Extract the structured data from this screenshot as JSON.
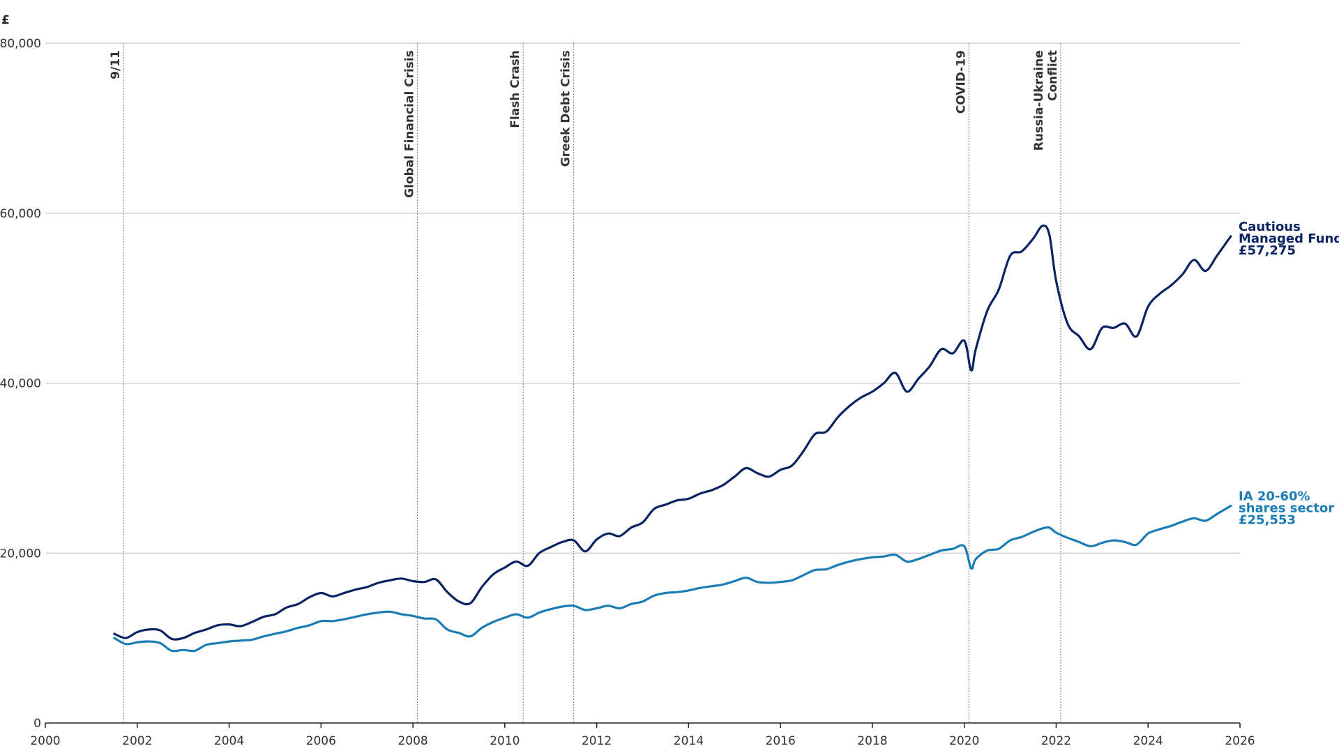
{
  "chart_data": {
    "type": "line",
    "title": "",
    "xlabel": "",
    "ylabel": "£",
    "xlim": [
      2000,
      2026
    ],
    "ylim": [
      0,
      80000
    ],
    "x_ticks": [
      "2000",
      "2002",
      "2004",
      "2006",
      "2008",
      "2010",
      "2012",
      "2014",
      "2016",
      "2018",
      "2020",
      "2022",
      "2024",
      "2026"
    ],
    "y_ticks": [
      "0",
      "20,000",
      "40,000",
      "60,000",
      "80,000"
    ],
    "grid": "horizontal",
    "events": [
      {
        "label": "9/11",
        "x": 2001.7
      },
      {
        "label": "Global Financial Crisis",
        "x": 2008.1
      },
      {
        "label": "Flash Crash",
        "x": 2010.4
      },
      {
        "label": "Greek Debt Crisis",
        "x": 2011.5
      },
      {
        "label": "COVID-19",
        "x": 2020.1
      },
      {
        "label": "Russia-Ukraine Conflict",
        "x": 2022.1,
        "lines": [
          "Russia-Ukraine",
          "Conflict"
        ]
      }
    ],
    "series": [
      {
        "name": "Cautious Managed Fund",
        "end_label": [
          "Cautious",
          "Managed Fund",
          "£57,275"
        ],
        "color": "#0a2463",
        "x": [
          2001.5,
          2001.75,
          2002.0,
          2002.25,
          2002.5,
          2002.75,
          2003.0,
          2003.25,
          2003.5,
          2003.75,
          2004.0,
          2004.25,
          2004.5,
          2004.75,
          2005.0,
          2005.25,
          2005.5,
          2005.75,
          2006.0,
          2006.25,
          2006.5,
          2006.75,
          2007.0,
          2007.25,
          2007.5,
          2007.75,
          2008.0,
          2008.25,
          2008.5,
          2008.75,
          2009.0,
          2009.25,
          2009.5,
          2009.75,
          2010.0,
          2010.25,
          2010.5,
          2010.75,
          2011.0,
          2011.25,
          2011.5,
          2011.75,
          2012.0,
          2012.25,
          2012.5,
          2012.75,
          2013.0,
          2013.25,
          2013.5,
          2013.75,
          2014.0,
          2014.25,
          2014.5,
          2014.75,
          2015.0,
          2015.25,
          2015.5,
          2015.75,
          2016.0,
          2016.25,
          2016.5,
          2016.75,
          2017.0,
          2017.25,
          2017.5,
          2017.75,
          2018.0,
          2018.25,
          2018.5,
          2018.75,
          2019.0,
          2019.25,
          2019.5,
          2019.75,
          2020.0,
          2020.15,
          2020.25,
          2020.5,
          2020.75,
          2021.0,
          2021.25,
          2021.5,
          2021.7,
          2021.85,
          2022.0,
          2022.25,
          2022.5,
          2022.75,
          2023.0,
          2023.25,
          2023.5,
          2023.75,
          2024.0,
          2024.25,
          2024.5,
          2024.75,
          2025.0,
          2025.25,
          2025.5,
          2025.8
        ],
        "values": [
          10500,
          10000,
          10700,
          11000,
          10900,
          9900,
          10000,
          10600,
          11000,
          11500,
          11600,
          11400,
          11900,
          12500,
          12800,
          13600,
          14000,
          14800,
          15300,
          14900,
          15300,
          15700,
          16000,
          16500,
          16800,
          17000,
          16700,
          16600,
          16900,
          15400,
          14300,
          14100,
          16000,
          17500,
          18300,
          19000,
          18500,
          20000,
          20700,
          21300,
          21500,
          20200,
          21600,
          22300,
          22000,
          23000,
          23600,
          25200,
          25700,
          26200,
          26400,
          27000,
          27400,
          28000,
          29000,
          30000,
          29400,
          29000,
          29800,
          30300,
          32000,
          34000,
          34300,
          36000,
          37300,
          38300,
          39000,
          40000,
          41200,
          39000,
          40500,
          42000,
          44000,
          43500,
          45000,
          41500,
          44000,
          48500,
          51000,
          55000,
          55500,
          57000,
          58500,
          57500,
          52000,
          47000,
          45500,
          44000,
          46500,
          46500,
          47000,
          45500,
          49000,
          50500,
          51500,
          52800,
          54500,
          53200,
          55000,
          57275
        ]
      },
      {
        "name": "IA 20-60% shares sector",
        "end_label": [
          "IA 20-60%",
          "shares sector",
          "£25,553"
        ],
        "color": "#1a7db5",
        "x": [
          2001.5,
          2001.75,
          2002.0,
          2002.25,
          2002.5,
          2002.75,
          2003.0,
          2003.25,
          2003.5,
          2003.75,
          2004.0,
          2004.25,
          2004.5,
          2004.75,
          2005.0,
          2005.25,
          2005.5,
          2005.75,
          2006.0,
          2006.25,
          2006.5,
          2006.75,
          2007.0,
          2007.25,
          2007.5,
          2007.75,
          2008.0,
          2008.25,
          2008.5,
          2008.75,
          2009.0,
          2009.25,
          2009.5,
          2009.75,
          2010.0,
          2010.25,
          2010.5,
          2010.75,
          2011.0,
          2011.25,
          2011.5,
          2011.75,
          2012.0,
          2012.25,
          2012.5,
          2012.75,
          2013.0,
          2013.25,
          2013.5,
          2013.75,
          2014.0,
          2014.25,
          2014.5,
          2014.75,
          2015.0,
          2015.25,
          2015.5,
          2015.75,
          2016.0,
          2016.25,
          2016.5,
          2016.75,
          2017.0,
          2017.25,
          2017.5,
          2017.75,
          2018.0,
          2018.25,
          2018.5,
          2018.75,
          2019.0,
          2019.25,
          2019.5,
          2019.75,
          2020.0,
          2020.15,
          2020.25,
          2020.5,
          2020.75,
          2021.0,
          2021.25,
          2021.5,
          2021.7,
          2021.85,
          2022.0,
          2022.25,
          2022.5,
          2022.75,
          2023.0,
          2023.25,
          2023.5,
          2023.75,
          2024.0,
          2024.25,
          2024.5,
          2024.75,
          2025.0,
          2025.25,
          2025.5,
          2025.8
        ],
        "values": [
          10000,
          9300,
          9500,
          9600,
          9400,
          8500,
          8600,
          8500,
          9200,
          9400,
          9600,
          9700,
          9800,
          10200,
          10500,
          10800,
          11200,
          11500,
          12000,
          12000,
          12200,
          12500,
          12800,
          13000,
          13100,
          12800,
          12600,
          12300,
          12200,
          11000,
          10600,
          10200,
          11200,
          11900,
          12400,
          12800,
          12400,
          13000,
          13400,
          13700,
          13800,
          13300,
          13500,
          13800,
          13500,
          14000,
          14300,
          15000,
          15300,
          15400,
          15600,
          15900,
          16100,
          16300,
          16700,
          17100,
          16600,
          16500,
          16600,
          16800,
          17400,
          18000,
          18100,
          18600,
          19000,
          19300,
          19500,
          19600,
          19800,
          19000,
          19300,
          19800,
          20300,
          20500,
          20800,
          18200,
          19300,
          20300,
          20500,
          21500,
          21900,
          22500,
          22900,
          23000,
          22400,
          21800,
          21300,
          20800,
          21200,
          21500,
          21300,
          21000,
          22300,
          22800,
          23200,
          23700,
          24100,
          23800,
          24600,
          25553
        ]
      }
    ]
  }
}
